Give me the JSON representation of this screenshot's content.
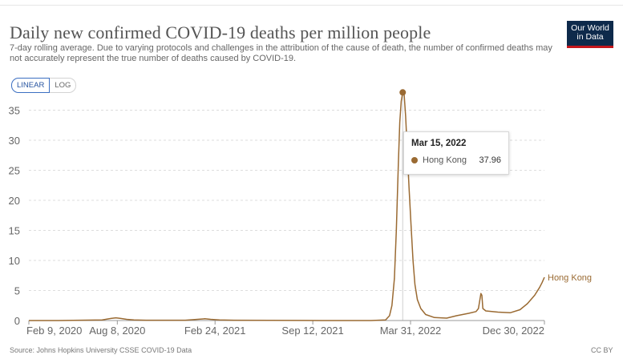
{
  "header": {
    "title": "Daily new confirmed COVID-19 deaths per million people",
    "subtitle": "7-day rolling average. Due to varying protocols and challenges in the attribution of the cause of death, the number of confirmed deaths may not accurately represent the true number of deaths caused by COVID-19.",
    "logo_line1": "Our World",
    "logo_line2": "in Data"
  },
  "controls": {
    "linear_label": "LINEAR",
    "log_label": "LOG",
    "selected": "LINEAR"
  },
  "tooltip": {
    "date": "Mar 15, 2022",
    "series": "Hong Kong",
    "value": "37.96"
  },
  "footer": {
    "source": "Source: Johns Hopkins University CSSE COVID-19 Data",
    "license": "CC BY"
  },
  "colors": {
    "series": "#9a6a32",
    "grid": "#dddddd",
    "axis": "#999999",
    "text": "#666666"
  },
  "chart_data": {
    "type": "line",
    "title": "Daily new confirmed COVID-19 deaths per million people",
    "xlabel": "",
    "ylabel": "",
    "ylim": [
      0,
      38
    ],
    "y_ticks": [
      0,
      5,
      10,
      15,
      20,
      25,
      30,
      35
    ],
    "x_ticks": [
      {
        "label": "Feb 9, 2020",
        "day": 0
      },
      {
        "label": "Aug 8, 2020",
        "day": 181
      },
      {
        "label": "Feb 24, 2021",
        "day": 381
      },
      {
        "label": "Sep 12, 2021",
        "day": 581
      },
      {
        "label": "Mar 31, 2022",
        "day": 781
      },
      {
        "label": "Dec 30, 2022",
        "day": 1055
      }
    ],
    "x_range_days": [
      0,
      1055
    ],
    "series": [
      {
        "name": "Hong Kong",
        "end_label": "Hong Kong",
        "points": [
          [
            0,
            0
          ],
          [
            60,
            0
          ],
          [
            150,
            0.1
          ],
          [
            168,
            0.35
          ],
          [
            178,
            0.45
          ],
          [
            188,
            0.35
          ],
          [
            200,
            0.2
          ],
          [
            215,
            0.1
          ],
          [
            240,
            0.05
          ],
          [
            320,
            0.05
          ],
          [
            345,
            0.2
          ],
          [
            360,
            0.3
          ],
          [
            372,
            0.2
          ],
          [
            390,
            0.1
          ],
          [
            420,
            0.05
          ],
          [
            600,
            0
          ],
          [
            700,
            0
          ],
          [
            730,
            0.1
          ],
          [
            738,
            0.8
          ],
          [
            743,
            2.5
          ],
          [
            748,
            7
          ],
          [
            752,
            15
          ],
          [
            756,
            26
          ],
          [
            759,
            33
          ],
          [
            762,
            36.5
          ],
          [
            765,
            37.96
          ],
          [
            768,
            37.5
          ],
          [
            771,
            34
          ],
          [
            774,
            29
          ],
          [
            778,
            22
          ],
          [
            782,
            16
          ],
          [
            786,
            10
          ],
          [
            790,
            6
          ],
          [
            795,
            3.5
          ],
          [
            802,
            2
          ],
          [
            812,
            1
          ],
          [
            830,
            0.5
          ],
          [
            855,
            0.4
          ],
          [
            875,
            0.8
          ],
          [
            900,
            1.2
          ],
          [
            915,
            1.5
          ],
          [
            920,
            2
          ],
          [
            925,
            4.5
          ],
          [
            927,
            4.2
          ],
          [
            929,
            2
          ],
          [
            935,
            1.6
          ],
          [
            960,
            1.4
          ],
          [
            985,
            1.3
          ],
          [
            1005,
            1.8
          ],
          [
            1020,
            2.8
          ],
          [
            1035,
            4.2
          ],
          [
            1045,
            5.5
          ],
          [
            1050,
            6.3
          ],
          [
            1055,
            7.2
          ]
        ]
      }
    ],
    "highlight": {
      "series": "Hong Kong",
      "date": "Mar 15, 2022",
      "day": 765,
      "value": 37.96
    }
  }
}
